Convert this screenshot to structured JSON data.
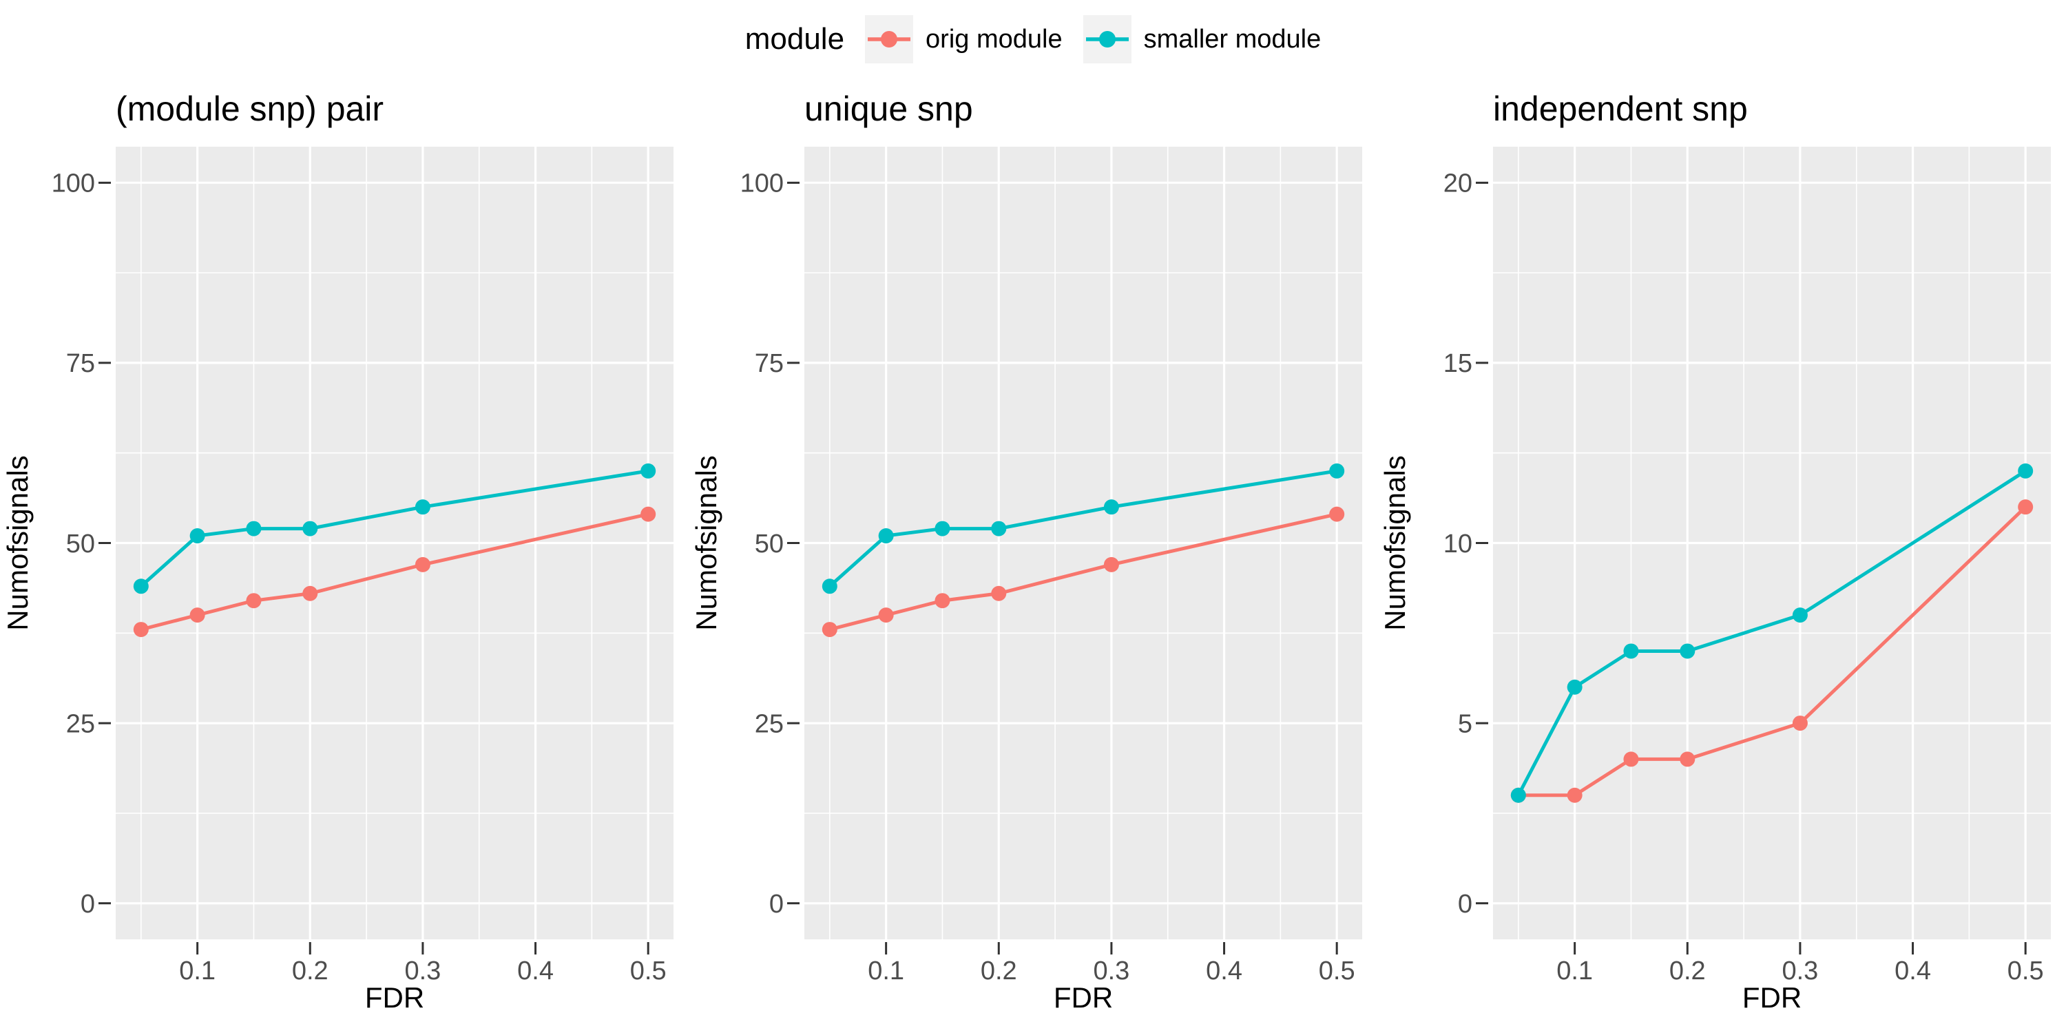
{
  "page": {
    "background": "#FFFFFF"
  },
  "legend": {
    "title": "module",
    "key_background": "#F2F2F2",
    "items": [
      {
        "label": "orig module",
        "color": "#F8766D"
      },
      {
        "label": "smaller module",
        "color": "#00BFC4"
      }
    ]
  },
  "style": {
    "panel_background": "#EBEBEB",
    "gridline_color": "#FFFFFF",
    "tick_color": "#333333",
    "tick_label_color": "#4D4D4D",
    "text_color": "#000000"
  },
  "chart_data": [
    {
      "type": "line",
      "title": "(module snp) pair",
      "xlabel": "FDR",
      "ylabel": "Numofsignals",
      "x": [
        0.05,
        0.1,
        0.15,
        0.2,
        0.3,
        0.5
      ],
      "series": [
        {
          "name": "orig module",
          "color": "#F8766D",
          "values": [
            38,
            40,
            42,
            43,
            47,
            54
          ]
        },
        {
          "name": "smaller module",
          "color": "#00BFC4",
          "values": [
            44,
            51,
            52,
            52,
            55,
            60
          ]
        }
      ],
      "x_domain": [
        0.0275,
        0.5225
      ],
      "y_domain": [
        -5,
        105
      ],
      "ylim": [
        0,
        100
      ],
      "xticks": {
        "values": [
          0.1,
          0.2,
          0.3,
          0.4,
          0.5
        ],
        "labels": [
          "0.1",
          "0.2",
          "0.3",
          "0.4",
          "0.5"
        ]
      },
      "yticks": {
        "values": [
          0,
          25,
          50,
          75,
          100
        ],
        "labels": [
          "0",
          "25",
          "50",
          "75",
          "100"
        ]
      },
      "xminor": [
        0.05,
        0.15,
        0.25,
        0.35,
        0.45
      ],
      "yminor": [
        12.5,
        37.5,
        62.5,
        87.5
      ],
      "grid": true,
      "legend_position": "top"
    },
    {
      "type": "line",
      "title": "unique snp",
      "xlabel": "FDR",
      "ylabel": "Numofsignals",
      "x": [
        0.05,
        0.1,
        0.15,
        0.2,
        0.3,
        0.5
      ],
      "series": [
        {
          "name": "orig module",
          "color": "#F8766D",
          "values": [
            38,
            40,
            42,
            43,
            47,
            54
          ]
        },
        {
          "name": "smaller module",
          "color": "#00BFC4",
          "values": [
            44,
            51,
            52,
            52,
            55,
            60
          ]
        }
      ],
      "x_domain": [
        0.0275,
        0.5225
      ],
      "y_domain": [
        -5,
        105
      ],
      "ylim": [
        0,
        100
      ],
      "xticks": {
        "values": [
          0.1,
          0.2,
          0.3,
          0.4,
          0.5
        ],
        "labels": [
          "0.1",
          "0.2",
          "0.3",
          "0.4",
          "0.5"
        ]
      },
      "yticks": {
        "values": [
          0,
          25,
          50,
          75,
          100
        ],
        "labels": [
          "0",
          "25",
          "50",
          "75",
          "100"
        ]
      },
      "xminor": [
        0.05,
        0.15,
        0.25,
        0.35,
        0.45
      ],
      "yminor": [
        12.5,
        37.5,
        62.5,
        87.5
      ],
      "grid": true,
      "legend_position": "top"
    },
    {
      "type": "line",
      "title": "independent snp",
      "xlabel": "FDR",
      "ylabel": "Numofsignals",
      "x": [
        0.05,
        0.1,
        0.15,
        0.2,
        0.3,
        0.5
      ],
      "series": [
        {
          "name": "orig module",
          "color": "#F8766D",
          "values": [
            3,
            3,
            4,
            4,
            5,
            11
          ]
        },
        {
          "name": "smaller module",
          "color": "#00BFC4",
          "values": [
            3,
            6,
            7,
            7,
            8,
            12
          ]
        }
      ],
      "x_domain": [
        0.0275,
        0.5225
      ],
      "y_domain": [
        -1,
        21
      ],
      "ylim": [
        0,
        20
      ],
      "xticks": {
        "values": [
          0.1,
          0.2,
          0.3,
          0.4,
          0.5
        ],
        "labels": [
          "0.1",
          "0.2",
          "0.3",
          "0.4",
          "0.5"
        ]
      },
      "yticks": {
        "values": [
          0,
          5,
          10,
          15,
          20
        ],
        "labels": [
          "0",
          "5",
          "10",
          "15",
          "20"
        ]
      },
      "xminor": [
        0.05,
        0.15,
        0.25,
        0.35,
        0.45
      ],
      "yminor": [
        2.5,
        7.5,
        12.5,
        17.5
      ],
      "grid": true,
      "legend_position": "top"
    }
  ]
}
